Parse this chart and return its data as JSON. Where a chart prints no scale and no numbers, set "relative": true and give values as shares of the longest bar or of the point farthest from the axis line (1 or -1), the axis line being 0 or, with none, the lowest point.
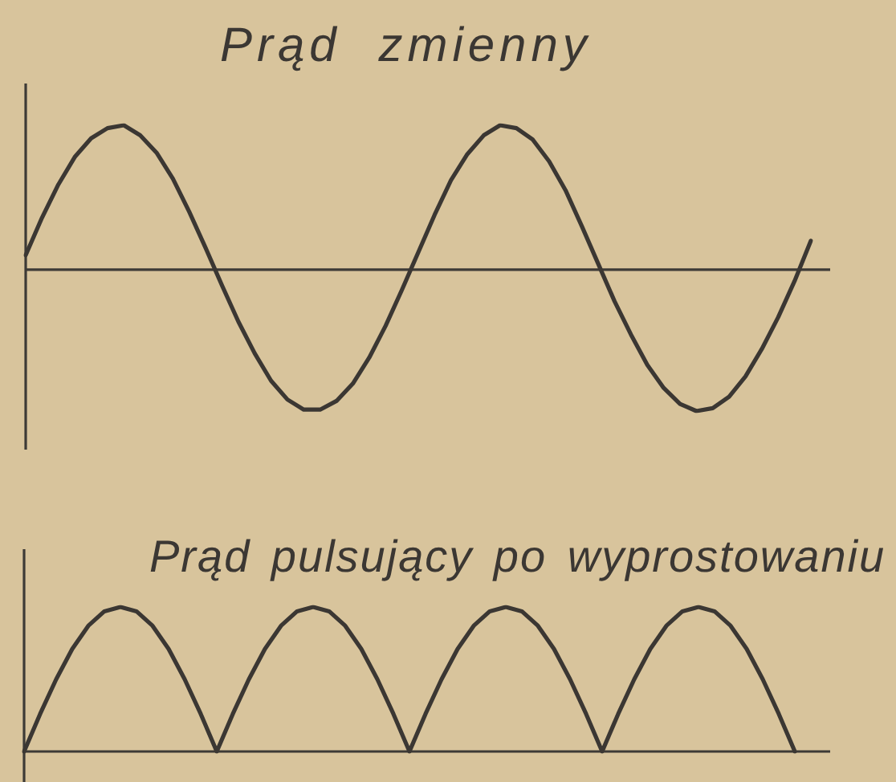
{
  "chart_data": [
    {
      "type": "line",
      "title": "Prąd zmienny",
      "relative": true,
      "marker": "none",
      "color": "#3b3733",
      "categories": [
        null,
        null,
        null,
        null,
        null,
        null,
        null,
        null,
        null,
        null,
        null,
        null,
        null,
        null,
        null,
        null,
        null,
        null,
        null,
        null,
        null,
        null,
        null,
        null,
        null,
        null,
        null,
        null,
        null,
        null,
        null,
        null,
        null,
        null,
        null,
        null,
        null,
        null,
        null,
        null,
        null,
        null,
        null,
        null,
        null,
        null,
        null,
        null,
        null
      ],
      "values": [
        0.1,
        0.36,
        0.59,
        0.78,
        0.91,
        0.98,
        1,
        0.93,
        0.81,
        0.63,
        0.4,
        0.15,
        -0.11,
        -0.36,
        -0.58,
        -0.77,
        -0.9,
        -0.97,
        -0.97,
        -0.91,
        -0.79,
        -0.61,
        -0.39,
        -0.14,
        0.12,
        0.38,
        0.62,
        0.8,
        0.93,
        1,
        0.98,
        0.9,
        0.75,
        0.55,
        0.3,
        0.04,
        -0.22,
        -0.45,
        -0.66,
        -0.82,
        -0.93,
        -0.98,
        -0.96,
        -0.88,
        -0.74,
        -0.55,
        -0.33,
        -0.08,
        0.2
      ]
    },
    {
      "type": "line",
      "title": "Prąd pulsujący po wyprostowaniu",
      "relative": true,
      "marker": "none",
      "color": "#3b3733",
      "categories": [
        null,
        null,
        null,
        null,
        null,
        null,
        null,
        null,
        null,
        null,
        null,
        null,
        null,
        null,
        null,
        null,
        null,
        null,
        null,
        null,
        null,
        null,
        null,
        null,
        null,
        null,
        null,
        null,
        null,
        null,
        null,
        null,
        null,
        null,
        null,
        null,
        null,
        null,
        null,
        null,
        null,
        null,
        null,
        null,
        null,
        null,
        null,
        null,
        null
      ],
      "values": [
        0,
        0.26,
        0.5,
        0.71,
        0.87,
        0.97,
        1,
        0.97,
        0.87,
        0.71,
        0.5,
        0.26,
        0,
        0.26,
        0.5,
        0.71,
        0.87,
        0.97,
        1,
        0.97,
        0.87,
        0.71,
        0.5,
        0.26,
        0,
        0.26,
        0.5,
        0.71,
        0.87,
        0.97,
        1,
        0.97,
        0.87,
        0.71,
        0.5,
        0.26,
        0,
        0.26,
        0.5,
        0.71,
        0.87,
        0.97,
        1,
        0.97,
        0.87,
        0.71,
        0.5,
        0.26,
        0
      ]
    }
  ]
}
